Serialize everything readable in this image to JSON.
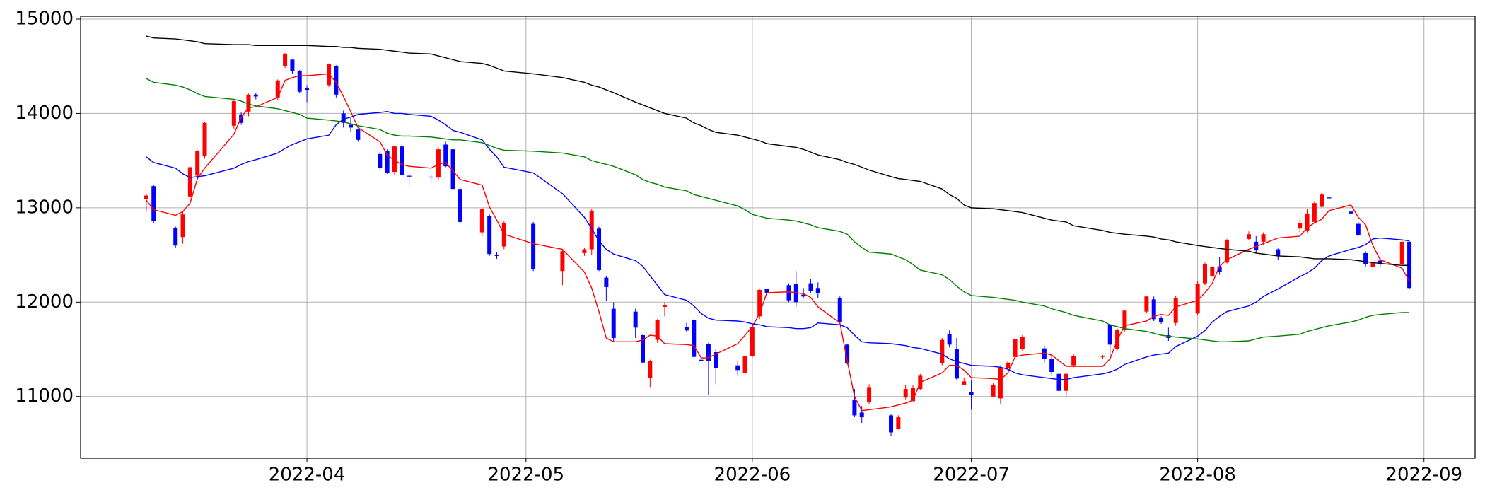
{
  "chart_data": {
    "type": "candlestick",
    "x": [
      "2022-03-10",
      "2022-03-11",
      "2022-03-14",
      "2022-03-15",
      "2022-03-16",
      "2022-03-17",
      "2022-03-18",
      "2022-03-22",
      "2022-03-23",
      "2022-03-24",
      "2022-03-25",
      "2022-03-28",
      "2022-03-29",
      "2022-03-30",
      "2022-03-31",
      "2022-04-01",
      "2022-04-04",
      "2022-04-05",
      "2022-04-06",
      "2022-04-07",
      "2022-04-08",
      "2022-04-11",
      "2022-04-12",
      "2022-04-13",
      "2022-04-14",
      "2022-04-15",
      "2022-04-18",
      "2022-04-19",
      "2022-04-20",
      "2022-04-21",
      "2022-04-22",
      "2022-04-25",
      "2022-04-26",
      "2022-04-27",
      "2022-04-28",
      "2022-05-02",
      "2022-05-06",
      "2022-05-09",
      "2022-05-10",
      "2022-05-11",
      "2022-05-12",
      "2022-05-13",
      "2022-05-16",
      "2022-05-17",
      "2022-05-18",
      "2022-05-19",
      "2022-05-20",
      "2022-05-23",
      "2022-05-24",
      "2022-05-25",
      "2022-05-26",
      "2022-05-27",
      "2022-05-30",
      "2022-05-31",
      "2022-06-01",
      "2022-06-02",
      "2022-06-03",
      "2022-06-06",
      "2022-06-07",
      "2022-06-08",
      "2022-06-09",
      "2022-06-10",
      "2022-06-13",
      "2022-06-14",
      "2022-06-15",
      "2022-06-16",
      "2022-06-17",
      "2022-06-20",
      "2022-06-21",
      "2022-06-22",
      "2022-06-23",
      "2022-06-24",
      "2022-06-27",
      "2022-06-28",
      "2022-06-29",
      "2022-06-30",
      "2022-07-01",
      "2022-07-04",
      "2022-07-05",
      "2022-07-06",
      "2022-07-07",
      "2022-07-08",
      "2022-07-11",
      "2022-07-12",
      "2022-07-13",
      "2022-07-14",
      "2022-07-15",
      "2022-07-19",
      "2022-07-20",
      "2022-07-21",
      "2022-07-22",
      "2022-07-25",
      "2022-07-26",
      "2022-07-27",
      "2022-07-28",
      "2022-07-29",
      "2022-08-01",
      "2022-08-02",
      "2022-08-03",
      "2022-08-04",
      "2022-08-05",
      "2022-08-08",
      "2022-08-09",
      "2022-08-10",
      "2022-08-12",
      "2022-08-15",
      "2022-08-16",
      "2022-08-17",
      "2022-08-18",
      "2022-08-19",
      "2022-08-22",
      "2022-08-23",
      "2022-08-24",
      "2022-08-25",
      "2022-08-26",
      "2022-08-29",
      "2022-08-30"
    ],
    "open": [
      13090,
      13230,
      12790,
      12690,
      13120,
      13340,
      13550,
      13870,
      13990,
      14020,
      14200,
      14170,
      14500,
      14570,
      14450,
      14270,
      14300,
      14500,
      14000,
      13880,
      13830,
      13570,
      13600,
      13380,
      13650,
      13340,
      13330,
      13320,
      13670,
      13620,
      13200,
      12740,
      12910,
      12500,
      12590,
      12830,
      12330,
      12520,
      12560,
      12780,
      12260,
      11930,
      11900,
      11650,
      11200,
      11600,
      11950,
      11740,
      11810,
      11390,
      11560,
      11470,
      11330,
      11250,
      11430,
      11850,
      12140,
      12180,
      12190,
      12080,
      12200,
      12150,
      12040,
      11550,
      10960,
      10830,
      10940,
      10800,
      10660,
      10990,
      10950,
      11080,
      11350,
      11660,
      11500,
      11120,
      11050,
      11000,
      10980,
      11300,
      11420,
      11500,
      11510,
      11400,
      11240,
      11060,
      11330,
      11420,
      11760,
      11500,
      11710,
      11900,
      12030,
      11830,
      11650,
      11780,
      11880,
      12200,
      12280,
      12380,
      12420,
      12670,
      12640,
      12640,
      12560,
      12780,
      12760,
      12850,
      13010,
      13110,
      12960,
      12830,
      12520,
      12370,
      12440,
      12400,
      12640
    ],
    "high": [
      13150,
      13240,
      12800,
      12960,
      13440,
      13610,
      13910,
      14150,
      14010,
      14210,
      14220,
      14360,
      14640,
      14580,
      14460,
      14300,
      14530,
      14510,
      14030,
      13950,
      13840,
      13590,
      13620,
      13660,
      13670,
      13360,
      13360,
      13640,
      13700,
      13640,
      13210,
      13000,
      12930,
      12530,
      12860,
      12850,
      12560,
      12580,
      12990,
      12800,
      12280,
      12000,
      11930,
      11660,
      11390,
      11820,
      12000,
      11780,
      11820,
      11400,
      11570,
      11500,
      11380,
      11450,
      11760,
      12140,
      12170,
      12200,
      12330,
      12150,
      12250,
      12210,
      12060,
      11560,
      11080,
      10900,
      11130,
      10810,
      10800,
      11120,
      11120,
      11240,
      11620,
      11700,
      11620,
      11200,
      11170,
      11140,
      11330,
      11380,
      11640,
      11650,
      11540,
      11450,
      11270,
      11250,
      11450,
      11440,
      11770,
      11720,
      11920,
      12070,
      12060,
      11850,
      11730,
      12070,
      12220,
      12420,
      12380,
      12480,
      12670,
      12750,
      12700,
      12740,
      12570,
      12870,
      12990,
      13070,
      13160,
      13160,
      12990,
      12850,
      12540,
      12510,
      12470,
      12660,
      12650
    ],
    "low": [
      12960,
      12840,
      12580,
      12620,
      13100,
      13300,
      13520,
      13840,
      13880,
      13970,
      14150,
      14140,
      14480,
      14420,
      14220,
      14120,
      14280,
      14170,
      13850,
      13800,
      13700,
      13400,
      13360,
      13350,
      13340,
      13240,
      13260,
      13300,
      13430,
      13190,
      12840,
      12700,
      12490,
      12460,
      12560,
      12330,
      12180,
      12490,
      12500,
      12330,
      12010,
      11580,
      11620,
      11350,
      11100,
      11570,
      11850,
      11680,
      11410,
      11360,
      11020,
      11130,
      11220,
      11230,
      11410,
      11820,
      12080,
      12000,
      11950,
      12040,
      12100,
      12040,
      11780,
      11340,
      10780,
      10720,
      10920,
      10580,
      10650,
      10970,
      10960,
      11070,
      11330,
      11520,
      11170,
      11120,
      10860,
      10990,
      10920,
      11270,
      11400,
      11480,
      11360,
      11220,
      11050,
      11000,
      11310,
      11400,
      11430,
      11490,
      11690,
      11880,
      11800,
      11770,
      11590,
      11750,
      11860,
      12180,
      12270,
      12290,
      12410,
      12660,
      12520,
      12610,
      12450,
      12740,
      12740,
      12840,
      13000,
      13060,
      12920,
      12700,
      12370,
      12360,
      12370,
      12390,
      12140
    ],
    "close": [
      13130,
      12860,
      12600,
      12930,
      13430,
      13600,
      13900,
      14130,
      13900,
      14200,
      14180,
      14350,
      14630,
      14450,
      14230,
      14250,
      14520,
      14200,
      13900,
      13850,
      13720,
      13420,
      13370,
      13650,
      13350,
      13330,
      13320,
      13620,
      13440,
      13200,
      12850,
      12990,
      12510,
      12490,
      12840,
      12350,
      12540,
      12560,
      12970,
      12340,
      12160,
      11620,
      11730,
      11360,
      11380,
      11810,
      11970,
      11700,
      11420,
      11380,
      11380,
      11300,
      11280,
      11430,
      11740,
      12130,
      12100,
      12020,
      12000,
      12060,
      12120,
      12100,
      11790,
      11350,
      10800,
      10780,
      11100,
      10620,
      10780,
      11080,
      11090,
      11220,
      11600,
      11550,
      11190,
      11160,
      11020,
      11120,
      11300,
      11360,
      11610,
      11630,
      11400,
      11260,
      11060,
      11240,
      11430,
      11430,
      11550,
      11710,
      11910,
      12060,
      11820,
      11790,
      11620,
      12040,
      12190,
      12400,
      12370,
      12320,
      12660,
      12720,
      12550,
      12720,
      12490,
      12840,
      12940,
      13050,
      13140,
      13100,
      12940,
      12710,
      12400,
      12430,
      12400,
      12640,
      12150
    ],
    "up_color": "#ff0000",
    "down_color": "#0000ff",
    "lines": [
      {
        "color": "#ff0000",
        "values": [
          13080,
          12980,
          12920,
          12960,
          13050,
          13310,
          13420,
          13780,
          13960,
          14060,
          14070,
          14170,
          14350,
          14380,
          14400,
          14400,
          14420,
          14330,
          14180,
          14020,
          13850,
          13700,
          13560,
          13500,
          13460,
          13440,
          13420,
          13460,
          13480,
          13390,
          13300,
          13240,
          13010,
          12870,
          12720,
          12620,
          12560,
          12320,
          12150,
          11900,
          11620,
          11580,
          11580,
          11600,
          11650,
          11640,
          11560,
          11550,
          11540,
          11410,
          11410,
          11450,
          11560,
          11650,
          11740,
          11880,
          12100,
          12110,
          12100,
          12090,
          12050,
          11950,
          11780,
          11380,
          11000,
          10850,
          10860,
          10890,
          10910,
          10930,
          10960,
          11150,
          11250,
          11330,
          11330,
          11280,
          11200,
          11190,
          11180,
          11250,
          11420,
          11440,
          11460,
          11440,
          11380,
          11320,
          11320,
          11320,
          11400,
          11600,
          11750,
          11800,
          11850,
          11870,
          11860,
          11950,
          12020,
          12100,
          12200,
          12380,
          12450,
          12560,
          12590,
          12620,
          12680,
          12700,
          12790,
          12840,
          12880,
          12970,
          13030,
          12900,
          12820,
          12600,
          12450,
          12360,
          12220
        ]
      },
      {
        "color": "#0000ff",
        "values": [
          13540,
          13480,
          13420,
          13360,
          13320,
          13330,
          13340,
          13420,
          13460,
          13490,
          13510,
          13580,
          13630,
          13670,
          13700,
          13730,
          13770,
          13880,
          13940,
          13960,
          13990,
          14010,
          14020,
          14000,
          14000,
          13990,
          13970,
          13930,
          13880,
          13820,
          13800,
          13720,
          13620,
          13540,
          13430,
          13370,
          13150,
          12900,
          12780,
          12650,
          12560,
          12510,
          12440,
          12380,
          12280,
          12180,
          12080,
          12020,
          11960,
          11880,
          11830,
          11810,
          11800,
          11790,
          11770,
          11760,
          11740,
          11730,
          11720,
          11720,
          11730,
          11780,
          11760,
          11730,
          11650,
          11580,
          11570,
          11560,
          11550,
          11540,
          11520,
          11510,
          11450,
          11400,
          11370,
          11350,
          11330,
          11320,
          11310,
          11290,
          11250,
          11230,
          11200,
          11190,
          11180,
          11180,
          11200,
          11240,
          11260,
          11290,
          11340,
          11420,
          11440,
          11450,
          11460,
          11530,
          11640,
          11700,
          11790,
          11850,
          11900,
          11960,
          12000,
          12060,
          12140,
          12270,
          12310,
          12360,
          12440,
          12490,
          12560,
          12580,
          12610,
          12670,
          12680,
          12660,
          12650
        ]
      },
      {
        "color": "#008000",
        "values": [
          14370,
          14330,
          14300,
          14280,
          14250,
          14210,
          14180,
          14150,
          14130,
          14100,
          14080,
          14050,
          14030,
          14010,
          13990,
          13950,
          13930,
          13920,
          13910,
          13890,
          13870,
          13830,
          13790,
          13770,
          13760,
          13760,
          13750,
          13740,
          13730,
          13720,
          13720,
          13690,
          13660,
          13630,
          13610,
          13600,
          13580,
          13540,
          13500,
          13480,
          13460,
          13440,
          13350,
          13300,
          13270,
          13250,
          13220,
          13180,
          13140,
          13120,
          13100,
          13080,
          13020,
          12980,
          12930,
          12910,
          12890,
          12870,
          12860,
          12840,
          12820,
          12790,
          12750,
          12720,
          12640,
          12580,
          12530,
          12510,
          12480,
          12450,
          12400,
          12340,
          12290,
          12240,
          12170,
          12110,
          12070,
          12050,
          12040,
          12030,
          12020,
          12000,
          11960,
          11930,
          11910,
          11890,
          11860,
          11800,
          11760,
          11740,
          11720,
          11690,
          11670,
          11650,
          11640,
          11630,
          11610,
          11600,
          11590,
          11580,
          11580,
          11590,
          11610,
          11630,
          11640,
          11660,
          11690,
          11710,
          11730,
          11750,
          11790,
          11810,
          11840,
          11860,
          11870,
          11890,
          11890
        ]
      },
      {
        "color": "#000000",
        "values": [
          14820,
          14800,
          14790,
          14780,
          14770,
          14760,
          14740,
          14730,
          14730,
          14730,
          14720,
          14720,
          14720,
          14720,
          14720,
          14720,
          14710,
          14710,
          14700,
          14700,
          14690,
          14680,
          14670,
          14660,
          14650,
          14640,
          14630,
          14610,
          14590,
          14570,
          14550,
          14530,
          14510,
          14480,
          14450,
          14420,
          14380,
          14330,
          14300,
          14280,
          14250,
          14220,
          14120,
          14090,
          14060,
          14030,
          14000,
          13950,
          13900,
          13870,
          13830,
          13800,
          13770,
          13750,
          13730,
          13710,
          13680,
          13650,
          13640,
          13620,
          13590,
          13560,
          13510,
          13480,
          13460,
          13430,
          13400,
          13330,
          13310,
          13300,
          13290,
          13280,
          13200,
          13140,
          13100,
          13030,
          13000,
          12990,
          12980,
          12970,
          12960,
          12950,
          12890,
          12870,
          12860,
          12850,
          12810,
          12760,
          12740,
          12730,
          12720,
          12700,
          12690,
          12670,
          12660,
          12640,
          12600,
          12590,
          12580,
          12570,
          12560,
          12540,
          12520,
          12510,
          12490,
          12480,
          12470,
          12460,
          12460,
          12460,
          12450,
          12440,
          12430,
          12420,
          12410,
          12390,
          12390
        ]
      }
    ],
    "xlim": [
      "2022-03-01",
      "2022-09-08"
    ],
    "xticks": [
      {
        "value": "2022-04-01",
        "label": "2022-04"
      },
      {
        "value": "2022-05-01",
        "label": "2022-05"
      },
      {
        "value": "2022-06-01",
        "label": "2022-06"
      },
      {
        "value": "2022-07-01",
        "label": "2022-07"
      },
      {
        "value": "2022-08-01",
        "label": "2022-08"
      },
      {
        "value": "2022-09-01",
        "label": "2022-09"
      }
    ],
    "ylim": [
      10346,
      15030
    ],
    "yticks": [
      11000,
      12000,
      13000,
      14000,
      15000
    ],
    "grid": true
  }
}
